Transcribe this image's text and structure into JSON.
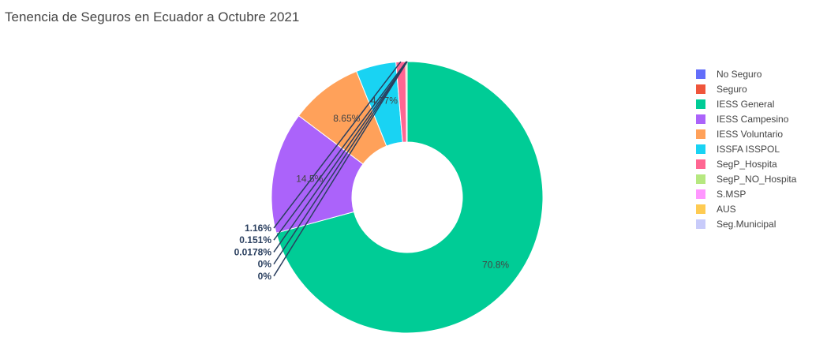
{
  "chart_data": {
    "type": "pie",
    "hole": true,
    "title": "Tenencia de Seguros en Ecuador a Octubre 2021",
    "legend_position": "right",
    "slices": [
      {
        "name": "No Seguro",
        "color": "#636efa",
        "percent": 0,
        "label": ""
      },
      {
        "name": "Seguro",
        "color": "#ef553b",
        "percent": 0,
        "label": ""
      },
      {
        "name": "IESS General",
        "color": "#00cc96",
        "percent": 70.8,
        "label": "70.8%"
      },
      {
        "name": "IESS Campesino",
        "color": "#ab63fa",
        "percent": 14.5,
        "label": "14.5%"
      },
      {
        "name": "IESS Voluntario",
        "color": "#ffa15a",
        "percent": 8.65,
        "label": "8.65%"
      },
      {
        "name": "ISSFA ISSPOL",
        "color": "#19d3f3",
        "percent": 4.77,
        "label": "4.77%"
      },
      {
        "name": "SegP_Hospita",
        "color": "#ff6692",
        "percent": 1.16,
        "label": "1.16%"
      },
      {
        "name": "SegP_NO_Hospita",
        "color": "#b6e880",
        "percent": 0.151,
        "label": "0.151%"
      },
      {
        "name": "S.MSP",
        "color": "#ff97ff",
        "percent": 0.0178,
        "label": "0.0178%"
      },
      {
        "name": "AUS",
        "color": "#fecb52",
        "percent": 0,
        "label": "0%"
      },
      {
        "name": "Seg.Municipal",
        "color": "#c8cbfa",
        "percent": 0,
        "label": "0%"
      }
    ]
  }
}
